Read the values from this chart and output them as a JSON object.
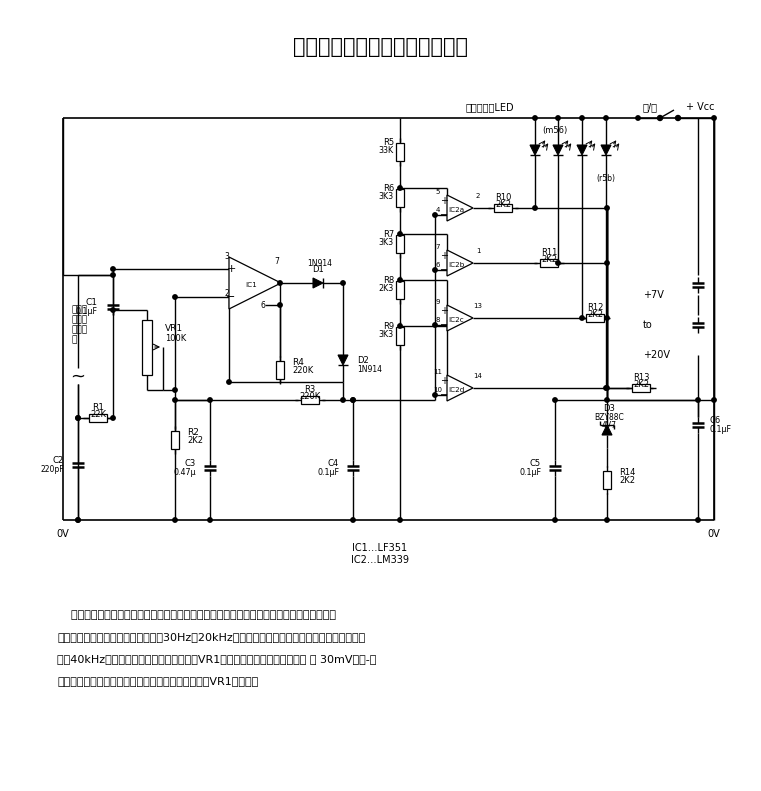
{
  "title": "廉价的交流信号条状刻度指示器",
  "body_lines": [
    "    指示器用来显示各种换能器的交流小信号的峰值电平。各种换能器包括话筒、应变仪和光电",
    "二极管。这一电路能对音频频谱（即30Hz～20kHz）内的输入信号作出响应，但减小的响应可扩",
    "大到40kHz。对于如图所示的元件来说，在VR1顺时针调到头时，最大灵敏度 为 30mV（峰-峰",
    "值）。在加上适当的输入信号时，指示器可通过调节VR1来校准。"
  ],
  "ic_lines": [
    "IC1…LF351",
    "IC2…LM339"
  ],
  "bg": "#ffffff",
  "fg": "#000000"
}
